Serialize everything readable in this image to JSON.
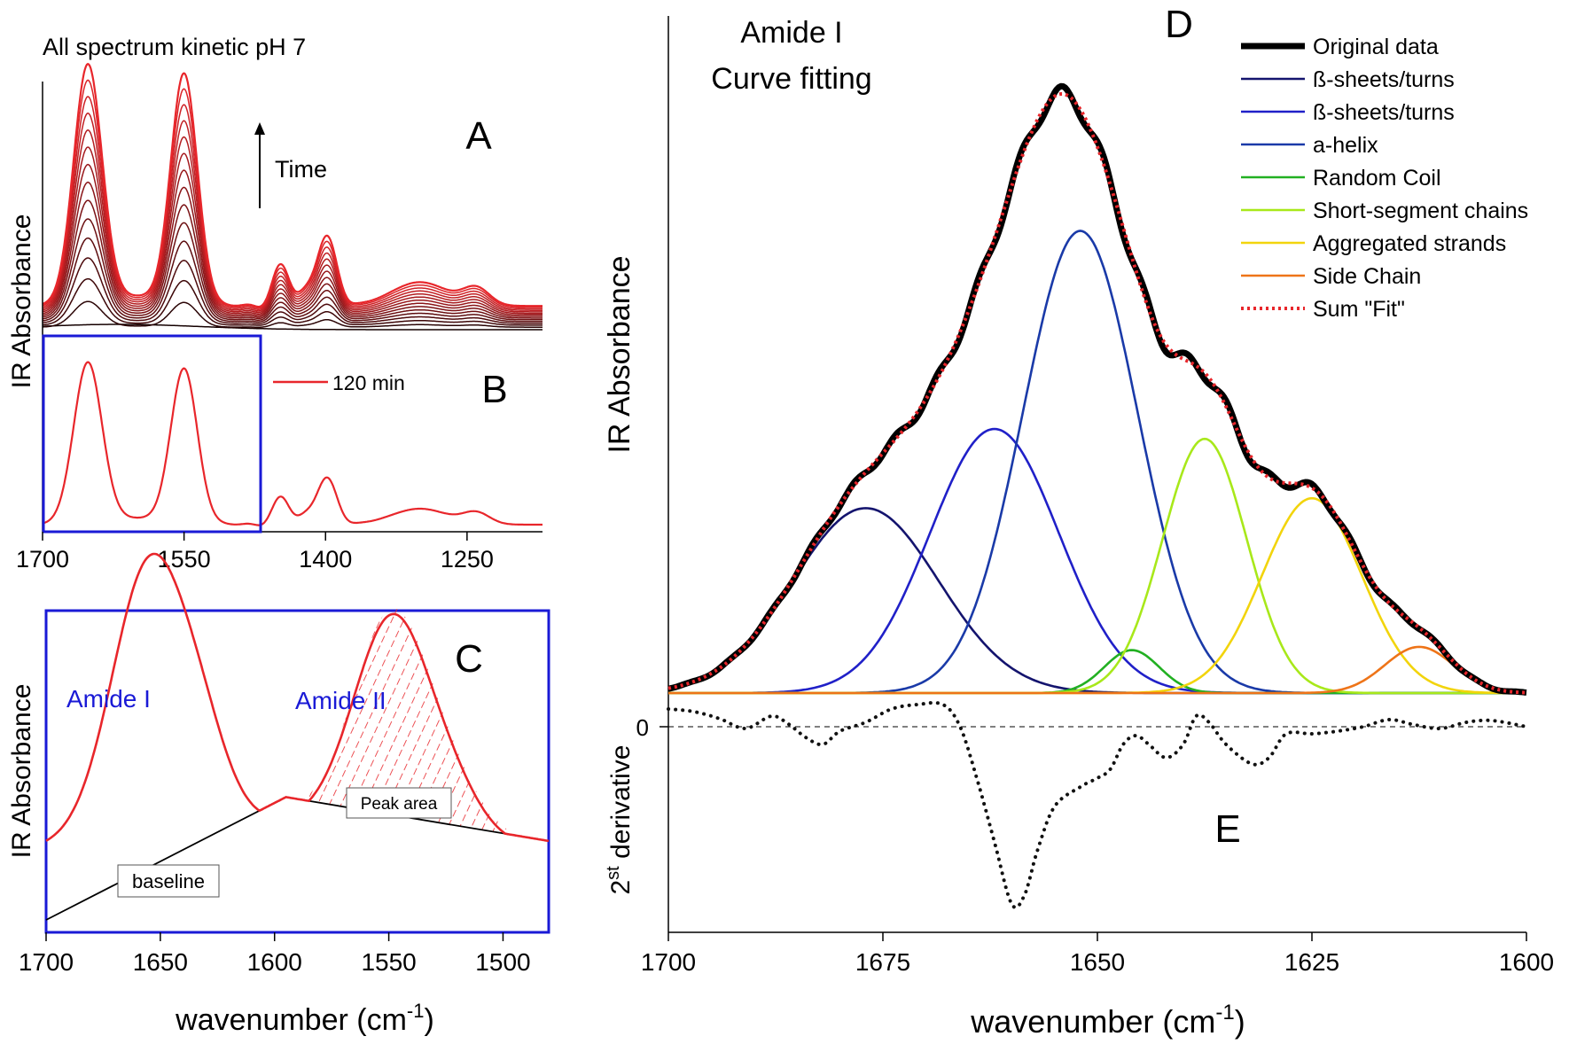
{
  "colors": {
    "red": "#e8262b",
    "blue_frame": "#1a1ad6",
    "blue_text": "#1a1ad6",
    "beta1": "#14146e",
    "beta2": "#2020c8",
    "helix": "#1a3aa8",
    "random_coil": "#22b022",
    "short_segment": "#a8e81a",
    "aggregated": "#f2d40c",
    "side_chain": "#ee7418",
    "fit": "#e8262b",
    "deriv": "#111111"
  },
  "chart_data": [
    {
      "id": "A",
      "type": "line",
      "panel_label": "A",
      "title": "All spectrum kinetic pH 7",
      "annotation": "Time",
      "xlim": [
        1700,
        1170
      ],
      "series_count": 15,
      "description": "Spectra recorded over time; absorbance grows with time",
      "peaks_cm": [
        1652,
        1550,
        1450,
        1400,
        1300,
        1240
      ],
      "relative_peak_heights_final": [
        1.0,
        0.96,
        0.2,
        0.3,
        0.12,
        0.07
      ]
    },
    {
      "id": "B",
      "type": "line",
      "panel_label": "B",
      "legend": [
        "120 min"
      ],
      "xlim": [
        1700,
        1170
      ],
      "xticks": [
        1700,
        1550,
        1400,
        1250
      ],
      "ylabel": "IR Absorbance",
      "highlight_range": [
        1700,
        1480
      ]
    },
    {
      "id": "C",
      "type": "line",
      "panel_label": "C",
      "xlim": [
        1700,
        1480
      ],
      "xticks": [
        1700,
        1650,
        1600,
        1550,
        1500
      ],
      "xlabel": "wavenumber (cm",
      "xlabel_sup": "-1",
      "xlabel_end": ")",
      "ylabel": "IR Absorbance",
      "annotations": [
        "Amide I",
        "Amide II",
        "Peak area",
        "baseline"
      ],
      "baseline_points": [
        [
          1700,
          0.0
        ],
        [
          1595,
          0.42
        ],
        [
          1480,
          0.27
        ]
      ]
    },
    {
      "id": "D",
      "type": "line",
      "panel_label": "D",
      "title_lines": [
        "Amide I",
        "Curve fitting"
      ],
      "xlim": [
        1700,
        1600
      ],
      "xticks": [
        1700,
        1675,
        1650,
        1625,
        1600
      ],
      "xlabel": "wavenumber (cm",
      "xlabel_sup": "-1",
      "xlabel_end": ")",
      "ylabel": "IR Absorbance",
      "components": [
        {
          "name": "ß-sheets/turns",
          "center": 1677,
          "height": 0.28,
          "width": 8.5,
          "color_key": "beta1"
        },
        {
          "name": "ß-sheets/turns",
          "center": 1662,
          "height": 0.4,
          "width": 7.5,
          "color_key": "beta2"
        },
        {
          "name": "a-helix",
          "center": 1652,
          "height": 0.7,
          "width": 6.7,
          "color_key": "helix"
        },
        {
          "name": "Random Coil",
          "center": 1646,
          "height": 0.065,
          "width": 3.2,
          "color_key": "random_coil"
        },
        {
          "name": "Short-segment chains",
          "center": 1637.5,
          "height": 0.385,
          "width": 4.9,
          "color_key": "short_segment"
        },
        {
          "name": "Aggregated strands",
          "center": 1625,
          "height": 0.295,
          "width": 5.8,
          "color_key": "aggregated"
        },
        {
          "name": "Side Chain",
          "center": 1612.5,
          "height": 0.07,
          "width": 4.0,
          "color_key": "side_chain"
        }
      ],
      "legend": [
        "Original data",
        "ß-sheets/turns",
        "ß-sheets/turns",
        "a-helix",
        "Random Coil",
        "Short-segment chains",
        "Aggregated strands",
        "Side Chain",
        "Sum \"Fit\""
      ]
    },
    {
      "id": "E",
      "type": "line",
      "panel_label": "E",
      "ylabel": "2",
      "ylabel_sup": "st",
      "ylabel_end": " derivative",
      "yticks": [
        0
      ],
      "xlim": [
        1700,
        1600
      ],
      "series_points": [
        [
          1700,
          0.2
        ],
        [
          1697,
          0.17
        ],
        [
          1694,
          0.09
        ],
        [
          1691,
          -0.02
        ],
        [
          1688,
          0.12
        ],
        [
          1686,
          0.03
        ],
        [
          1684,
          -0.12
        ],
        [
          1682,
          -0.2
        ],
        [
          1680,
          -0.05
        ],
        [
          1677,
          0.05
        ],
        [
          1674,
          0.2
        ],
        [
          1671,
          0.25
        ],
        [
          1668,
          0.25
        ],
        [
          1666,
          0.0
        ],
        [
          1664,
          -0.6
        ],
        [
          1662,
          -1.3
        ],
        [
          1660,
          -2.0
        ],
        [
          1658.5,
          -1.9
        ],
        [
          1657,
          -1.4
        ],
        [
          1655,
          -0.9
        ],
        [
          1652,
          -0.68
        ],
        [
          1650,
          -0.58
        ],
        [
          1648.5,
          -0.48
        ],
        [
          1647,
          -0.2
        ],
        [
          1645.5,
          -0.1
        ],
        [
          1644,
          -0.2
        ],
        [
          1642,
          -0.35
        ],
        [
          1640,
          -0.2
        ],
        [
          1638.5,
          0.12
        ],
        [
          1637,
          0.05
        ],
        [
          1635,
          -0.2
        ],
        [
          1632,
          -0.42
        ],
        [
          1630,
          -0.35
        ],
        [
          1628,
          -0.08
        ],
        [
          1625,
          -0.08
        ],
        [
          1622,
          -0.05
        ],
        [
          1619,
          0.0
        ],
        [
          1616,
          0.08
        ],
        [
          1613,
          0.02
        ],
        [
          1610,
          -0.02
        ],
        [
          1607,
          0.05
        ],
        [
          1604,
          0.07
        ],
        [
          1600,
          0.0
        ]
      ]
    }
  ]
}
